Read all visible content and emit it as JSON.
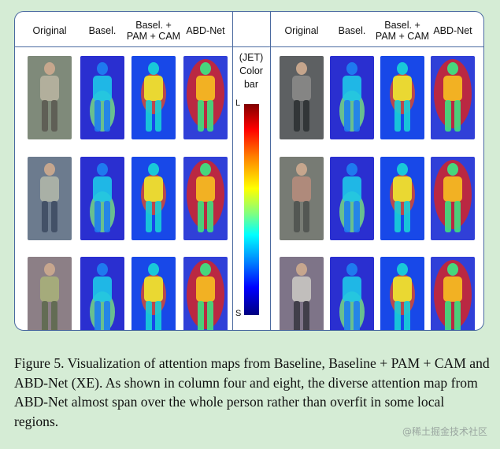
{
  "figure": {
    "left_headers": [
      "Original",
      "Basel.",
      "Basel. +\nPAM + CAM",
      "ABD-Net"
    ],
    "right_headers": [
      "Original",
      "Basel.",
      "Basel. +\nPAM + CAM",
      "ABD-Net"
    ],
    "colorbar": {
      "title": "(JET)\nColor\nbar",
      "top_label": "L",
      "bottom_label": "S"
    },
    "colors": {
      "border": "#4a6aa0",
      "page_background": "#d5ecd5"
    }
  },
  "caption": "Figure 5. Visualization of attention maps from Baseline, Baseline + PAM + CAM and ABD-Net (XE). As shown in column four and eight, the diverse attention map from ABD-Net almost span over the whole person rather than overfit in some local regions.",
  "watermark": "@稀土掘金技术社区"
}
